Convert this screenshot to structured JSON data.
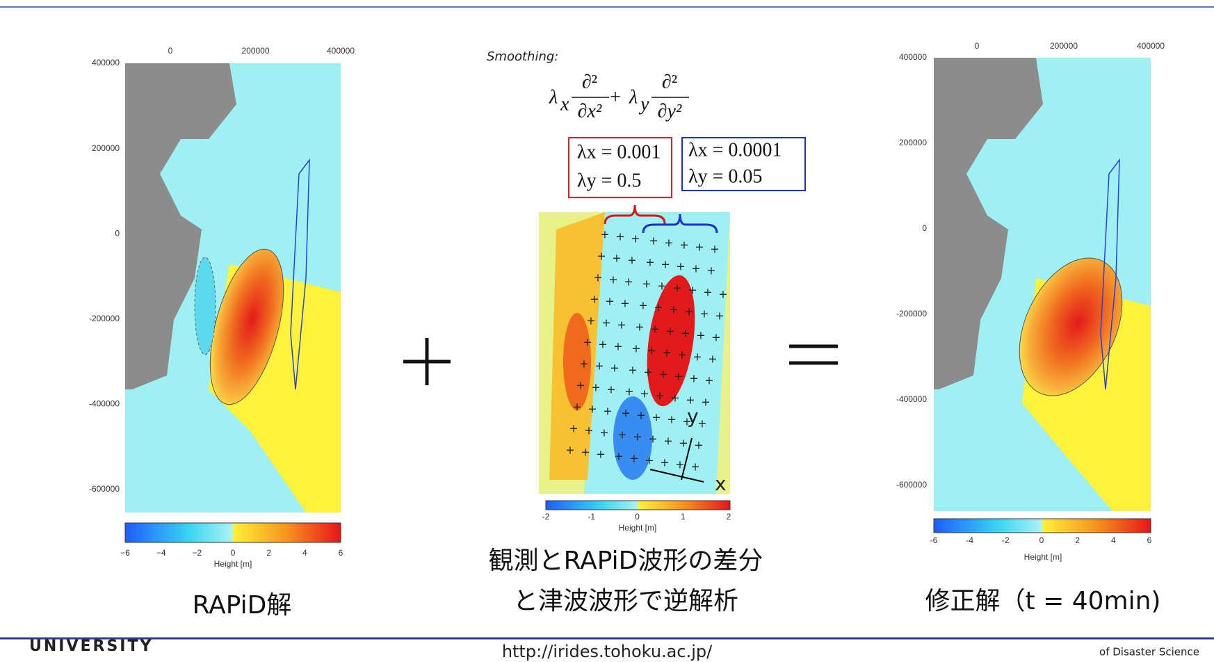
{
  "left_panel": {
    "x_ticks": [
      "0",
      "200000",
      "400000"
    ],
    "y_ticks": [
      "400000",
      "200000",
      "0",
      "-200000",
      "-400000",
      "-600000"
    ],
    "colorbar_ticks": [
      "−6",
      "−4",
      "−2",
      "0",
      "2",
      "4",
      "6"
    ],
    "colorbar_label": "Height [m]",
    "caption": "RAPiD解"
  },
  "middle_panel": {
    "smoothing_label": "Smoothing:",
    "formula": {
      "terms": [
        {
          "coef": "λ",
          "sub": "x",
          "num": "∂²",
          "den": "∂x²"
        },
        {
          "coef": "λ",
          "sub": "y",
          "num": "∂²",
          "den": "∂y²"
        }
      ],
      "operator": "+"
    },
    "red_box": [
      "λx = 0.001",
      "λy = 0.5"
    ],
    "blue_box": [
      "λx = 0.0001",
      "λy = 0.05"
    ],
    "axis_y": "y",
    "axis_x": "x",
    "colorbar_ticks": [
      "-2",
      "-1",
      "0",
      "1",
      "2"
    ],
    "colorbar_label": "Height [m]",
    "caption": [
      "観測とRAPiD波形の差分",
      "と津波波形で逆解析"
    ]
  },
  "right_panel": {
    "x_ticks": [
      "0",
      "200000",
      "400000"
    ],
    "y_ticks": [
      "400000",
      "200000",
      "0",
      "-200000",
      "-400000",
      "-600000"
    ],
    "colorbar_ticks": [
      "-6",
      "-4",
      "-2",
      "0",
      "2",
      "4",
      "6"
    ],
    "colorbar_label": "Height [m]",
    "caption": "修正解（t = 40min)"
  },
  "footer": {
    "left": "UNIVERSITY",
    "url": "http://irides.tohoku.ac.jp/",
    "right": "of Disaster Science"
  }
}
